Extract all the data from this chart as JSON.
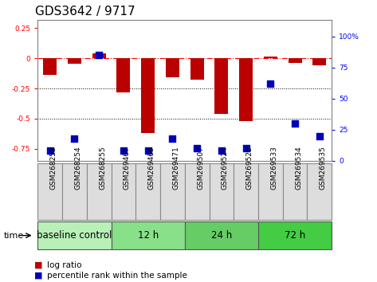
{
  "title": "GDS3642 / 9717",
  "samples": [
    "GSM268253",
    "GSM268254",
    "GSM268255",
    "GSM269467",
    "GSM269469",
    "GSM269471",
    "GSM269507",
    "GSM269524",
    "GSM269525",
    "GSM269533",
    "GSM269534",
    "GSM269535"
  ],
  "log_ratio": [
    -0.14,
    -0.045,
    0.04,
    -0.28,
    -0.62,
    -0.16,
    -0.18,
    -0.46,
    -0.52,
    0.015,
    -0.04,
    -0.06
  ],
  "percentile_rank": [
    8,
    18,
    85,
    8,
    8,
    18,
    10,
    8,
    10,
    62,
    30,
    20
  ],
  "groups": [
    {
      "label": "baseline control",
      "start": 0,
      "end": 3,
      "color": "#b8f0b8"
    },
    {
      "label": "12 h",
      "start": 3,
      "end": 6,
      "color": "#88e088"
    },
    {
      "label": "24 h",
      "start": 6,
      "end": 9,
      "color": "#66cc66"
    },
    {
      "label": "72 h",
      "start": 9,
      "end": 12,
      "color": "#44cc44"
    }
  ],
  "ylim_left": [
    -0.85,
    0.32
  ],
  "ylim_right": [
    0,
    113.6
  ],
  "yticks_left": [
    -0.75,
    -0.5,
    -0.25,
    0,
    0.25
  ],
  "yticks_right": [
    0,
    25,
    50,
    75,
    100
  ],
  "hlines": [
    -0.25,
    -0.5
  ],
  "bar_color": "#bb0000",
  "dot_color": "#0000bb",
  "bar_width": 0.55,
  "dot_size": 28,
  "bg_color": "#ffffff",
  "title_fontsize": 11,
  "tick_fontsize": 6.5,
  "label_fontsize": 8,
  "group_label_fontsize": 8.5,
  "legend_fontsize": 7.5
}
